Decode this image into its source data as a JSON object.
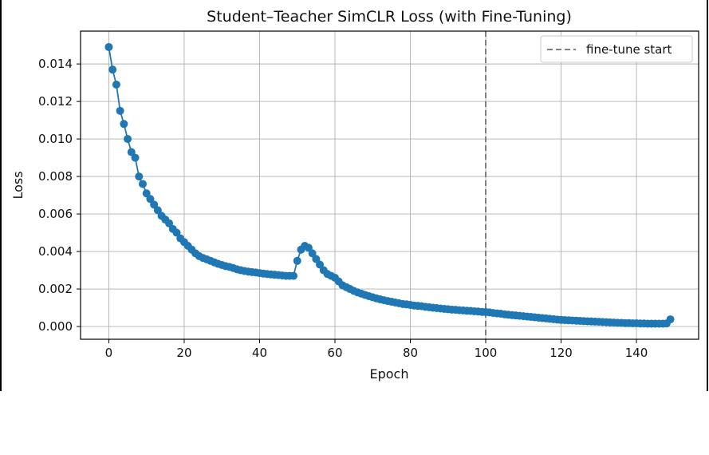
{
  "chart_data": {
    "type": "line",
    "title": "Student–Teacher SimCLR Loss (with Fine-Tuning)",
    "xlabel": "Epoch",
    "ylabel": "Loss",
    "xlim": [
      -7.5,
      156.5
    ],
    "ylim": [
      -0.00068,
      0.01575
    ],
    "xticks": [
      0,
      20,
      40,
      60,
      80,
      100,
      120,
      140
    ],
    "yticks": [
      0.0,
      0.002,
      0.004,
      0.006,
      0.008,
      0.01,
      0.012,
      0.014
    ],
    "ytick_labels": [
      "0.000",
      "0.002",
      "0.004",
      "0.006",
      "0.008",
      "0.010",
      "0.012",
      "0.014"
    ],
    "grid": true,
    "legend_position": "top-right",
    "line_color": "#1f77b4",
    "vline_color": "#808080",
    "vline": {
      "x": 100,
      "label": "fine-tune start",
      "style": "dashed"
    },
    "series": [
      {
        "x": [
          0,
          1,
          2,
          3,
          4,
          5,
          6,
          7,
          8,
          9,
          10,
          11,
          12,
          13,
          14,
          15,
          16,
          17,
          18,
          19,
          20,
          21,
          22,
          23,
          24,
          25,
          26,
          27,
          28,
          29,
          30,
          31,
          32,
          33,
          34,
          35,
          36,
          37,
          38,
          39,
          40,
          41,
          42,
          43,
          44,
          45,
          46,
          47,
          48,
          49,
          50,
          51,
          52,
          53,
          54,
          55,
          56,
          57,
          58,
          59,
          60,
          61,
          62,
          63,
          64,
          65,
          66,
          67,
          68,
          69,
          70,
          71,
          72,
          73,
          74,
          75,
          76,
          77,
          78,
          79,
          80,
          81,
          82,
          83,
          84,
          85,
          86,
          87,
          88,
          89,
          90,
          91,
          92,
          93,
          94,
          95,
          96,
          97,
          98,
          99,
          100,
          101,
          102,
          103,
          104,
          105,
          106,
          107,
          108,
          109,
          110,
          111,
          112,
          113,
          114,
          115,
          116,
          117,
          118,
          119,
          120,
          121,
          122,
          123,
          124,
          125,
          126,
          127,
          128,
          129,
          130,
          131,
          132,
          133,
          134,
          135,
          136,
          137,
          138,
          139,
          140,
          141,
          142,
          143,
          144,
          145,
          146,
          147,
          148,
          149
        ],
        "y": [
          0.0149,
          0.0137,
          0.0129,
          0.0115,
          0.0108,
          0.01,
          0.0093,
          0.009,
          0.008,
          0.0076,
          0.0071,
          0.0068,
          0.0065,
          0.0062,
          0.0059,
          0.0057,
          0.0055,
          0.0052,
          0.005,
          0.0047,
          0.0045,
          0.0043,
          0.0041,
          0.0039,
          0.00375,
          0.00365,
          0.00358,
          0.0035,
          0.00342,
          0.00334,
          0.00328,
          0.00322,
          0.00318,
          0.00312,
          0.00305,
          0.003,
          0.00296,
          0.00293,
          0.0029,
          0.00288,
          0.00285,
          0.00282,
          0.0028,
          0.00278,
          0.00276,
          0.00274,
          0.00272,
          0.0027,
          0.0027,
          0.0027,
          0.0035,
          0.0041,
          0.0043,
          0.0042,
          0.0039,
          0.0036,
          0.0033,
          0.003,
          0.0028,
          0.0027,
          0.0026,
          0.0024,
          0.0022,
          0.0021,
          0.002,
          0.0019,
          0.00182,
          0.00175,
          0.00168,
          0.00162,
          0.00156,
          0.0015,
          0.00145,
          0.0014,
          0.00136,
          0.00132,
          0.00128,
          0.00124,
          0.0012,
          0.00118,
          0.00115,
          0.00112,
          0.0011,
          0.00108,
          0.00105,
          0.00103,
          0.001,
          0.00098,
          0.00096,
          0.00094,
          0.00092,
          0.0009,
          0.00089,
          0.00087,
          0.00086,
          0.00084,
          0.00083,
          0.00081,
          0.0008,
          0.00078,
          0.00077,
          0.00075,
          0.00072,
          0.0007,
          0.00068,
          0.00065,
          0.00063,
          0.00061,
          0.00059,
          0.00057,
          0.00055,
          0.00053,
          0.00051,
          0.00049,
          0.00047,
          0.00045,
          0.00043,
          0.00041,
          0.00039,
          0.00037,
          0.00035,
          0.00034,
          0.00033,
          0.00032,
          0.00031,
          0.0003,
          0.00029,
          0.00028,
          0.00027,
          0.00026,
          0.00025,
          0.00024,
          0.00023,
          0.00022,
          0.00021,
          0.0002,
          0.00019,
          0.00018,
          0.00018,
          0.00017,
          0.00017,
          0.00016,
          0.00016,
          0.00015,
          0.00015,
          0.00015,
          0.00015,
          0.00015,
          0.00016,
          0.00038
        ]
      }
    ]
  }
}
